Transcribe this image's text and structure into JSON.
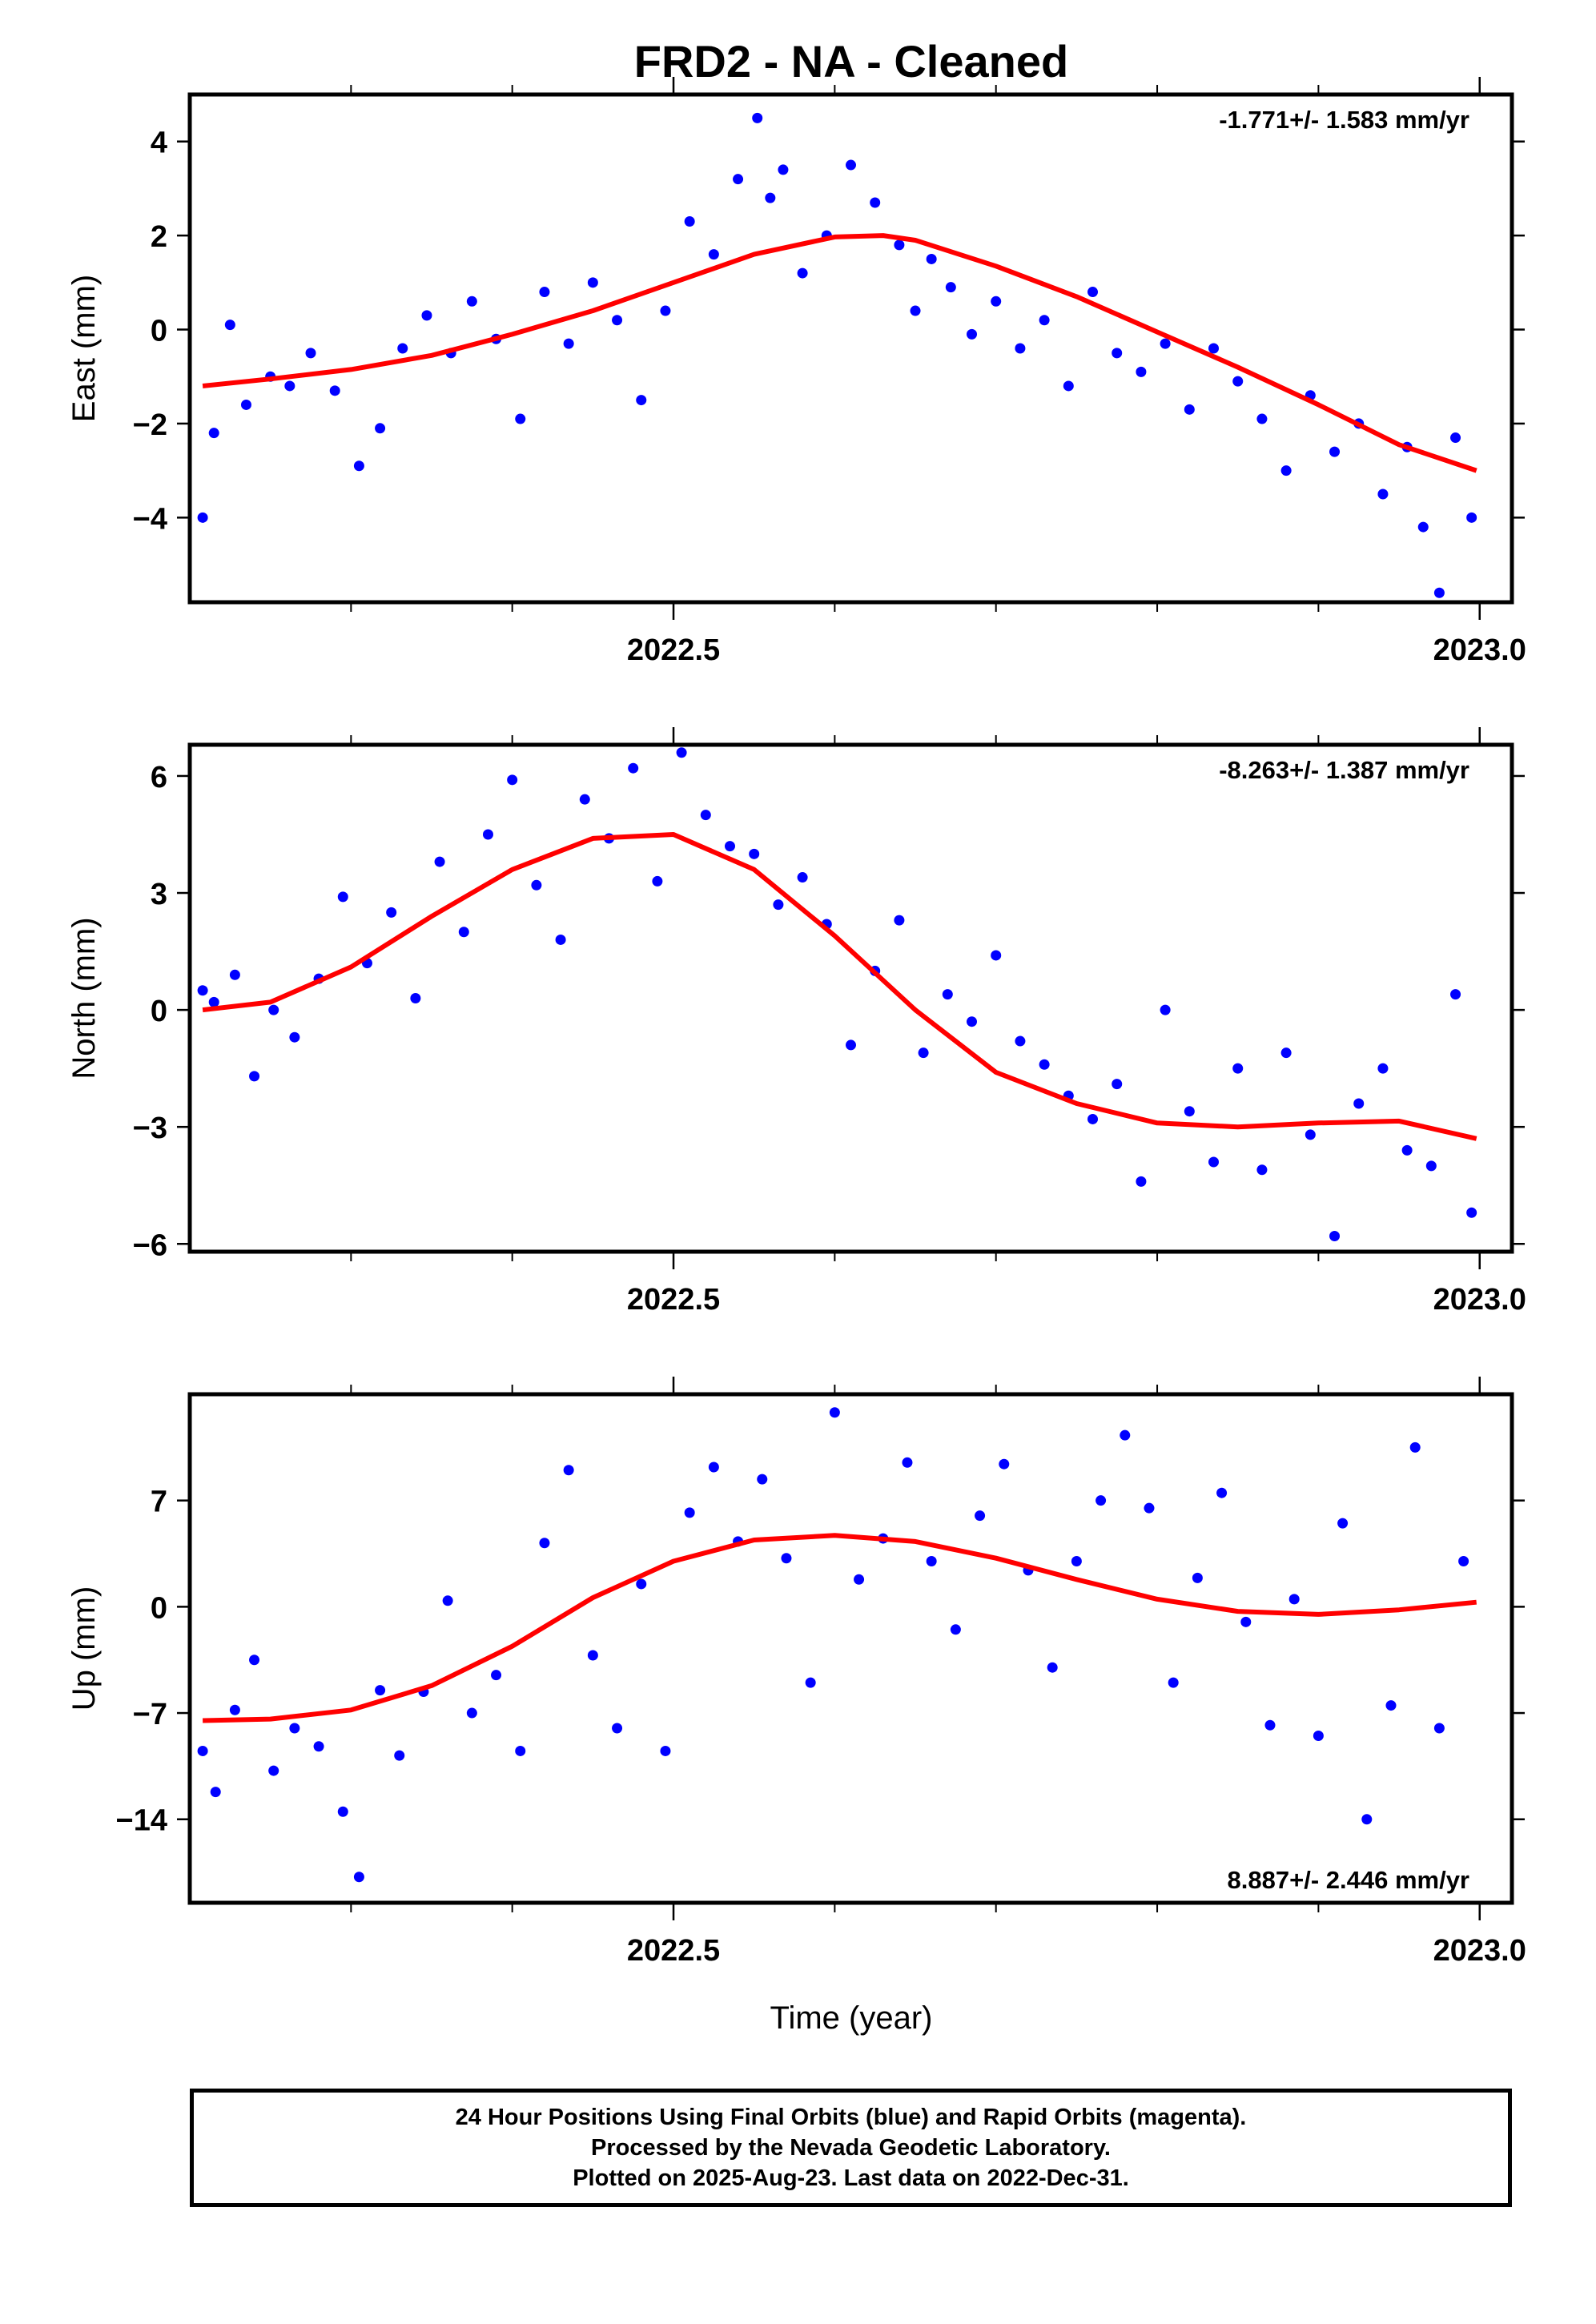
{
  "figure": {
    "title": "FRD2  - NA - Cleaned",
    "xlabel": "Time (year)",
    "colors": {
      "points": "#0000ff",
      "fit": "#ff0000",
      "axis": "#000000"
    }
  },
  "footer": {
    "lines": [
      "24 Hour Positions Using Final Orbits (blue) and Rapid Orbits (magenta).",
      "Processed by the Nevada Geodetic Laboratory.",
      "Plotted on 2025-Aug-23. Last data on 2022-Dec-31."
    ]
  },
  "chart_data": [
    {
      "type": "scatter",
      "panel": "east",
      "ylabel": "East (mm)",
      "rate_label": "-1.771+/- 1.583 mm/yr",
      "rate_position": "top-right",
      "xlim": [
        2022.2,
        2023.02
      ],
      "ylim": [
        -5.8,
        5.0
      ],
      "xticks": [
        2022.5,
        2023.0
      ],
      "xtick_labels": [
        "2022.5",
        "2023.0"
      ],
      "yticks": [
        -4,
        -2,
        0,
        2,
        4
      ],
      "ytick_labels": [
        "−4",
        "−2",
        "0",
        "2",
        "4"
      ],
      "series": [
        {
          "kind": "points",
          "x": [
            2022.208,
            2022.215,
            2022.225,
            2022.235,
            2022.25,
            2022.262,
            2022.275,
            2022.29,
            2022.305,
            2022.318,
            2022.332,
            2022.347,
            2022.362,
            2022.375,
            2022.39,
            2022.405,
            2022.42,
            2022.435,
            2022.45,
            2022.465,
            2022.48,
            2022.495,
            2022.51,
            2022.525,
            2022.54,
            2022.552,
            2022.56,
            2022.568,
            2022.58,
            2022.595,
            2022.61,
            2022.625,
            2022.64,
            2022.65,
            2022.66,
            2022.672,
            2022.685,
            2022.7,
            2022.715,
            2022.73,
            2022.745,
            2022.76,
            2022.775,
            2022.79,
            2022.805,
            2022.82,
            2022.835,
            2022.85,
            2022.865,
            2022.88,
            2022.895,
            2022.91,
            2022.925,
            2022.94,
            2022.955,
            2022.965,
            2022.975,
            2022.985,
            2022.995
          ],
          "y": [
            -4.0,
            -2.2,
            0.1,
            -1.6,
            -1.0,
            -1.2,
            -0.5,
            -1.3,
            -2.9,
            -2.1,
            -0.4,
            0.3,
            -0.5,
            0.6,
            -0.2,
            -1.9,
            0.8,
            -0.3,
            1.0,
            0.2,
            -1.5,
            0.4,
            2.3,
            1.6,
            3.2,
            4.5,
            2.8,
            3.4,
            1.2,
            2.0,
            3.5,
            2.7,
            1.8,
            0.4,
            1.5,
            0.9,
            -0.1,
            0.6,
            -0.4,
            0.2,
            -1.2,
            0.8,
            -0.5,
            -0.9,
            -0.3,
            -1.7,
            -0.4,
            -1.1,
            -1.9,
            -3.0,
            -1.4,
            -2.6,
            -2.0,
            -3.5,
            -2.5,
            -4.2,
            -5.6,
            -2.3,
            -4.0
          ]
        },
        {
          "kind": "fit",
          "x": [
            2022.208,
            2022.25,
            2022.3,
            2022.35,
            2022.4,
            2022.45,
            2022.5,
            2022.55,
            2022.6,
            2022.63,
            2022.65,
            2022.7,
            2022.75,
            2022.8,
            2022.85,
            2022.9,
            2022.95,
            2022.998
          ],
          "y": [
            -1.2,
            -1.05,
            -0.85,
            -0.55,
            -0.1,
            0.4,
            1.0,
            1.6,
            1.97,
            2.0,
            1.9,
            1.35,
            0.7,
            -0.05,
            -0.8,
            -1.6,
            -2.45,
            -3.0
          ]
        }
      ]
    },
    {
      "type": "scatter",
      "panel": "north",
      "ylabel": "North (mm)",
      "rate_label": "-8.263+/- 1.387 mm/yr",
      "rate_position": "top-right",
      "xlim": [
        2022.2,
        2023.02
      ],
      "ylim": [
        -6.2,
        6.8
      ],
      "xticks": [
        2022.5,
        2023.0
      ],
      "xtick_labels": [
        "2022.5",
        "2023.0"
      ],
      "yticks": [
        -6,
        -3,
        0,
        3,
        6
      ],
      "ytick_labels": [
        "−6",
        "−3",
        "0",
        "3",
        "6"
      ],
      "series": [
        {
          "kind": "points",
          "x": [
            2022.208,
            2022.215,
            2022.228,
            2022.24,
            2022.252,
            2022.265,
            2022.28,
            2022.295,
            2022.31,
            2022.325,
            2022.34,
            2022.355,
            2022.37,
            2022.385,
            2022.4,
            2022.415,
            2022.43,
            2022.445,
            2022.46,
            2022.475,
            2022.49,
            2022.505,
            2022.52,
            2022.535,
            2022.55,
            2022.565,
            2022.58,
            2022.595,
            2022.61,
            2022.625,
            2022.64,
            2022.655,
            2022.67,
            2022.685,
            2022.7,
            2022.715,
            2022.73,
            2022.745,
            2022.76,
            2022.775,
            2022.79,
            2022.805,
            2022.82,
            2022.835,
            2022.85,
            2022.865,
            2022.88,
            2022.895,
            2022.91,
            2022.925,
            2022.94,
            2022.955,
            2022.97,
            2022.985,
            2022.995
          ],
          "y": [
            0.5,
            0.2,
            0.9,
            -1.7,
            0.0,
            -0.7,
            0.8,
            2.9,
            1.2,
            2.5,
            0.3,
            3.8,
            2.0,
            4.5,
            5.9,
            3.2,
            1.8,
            5.4,
            4.4,
            6.2,
            3.3,
            6.6,
            5.0,
            4.2,
            4.0,
            2.7,
            3.4,
            2.2,
            -0.9,
            1.0,
            2.3,
            -1.1,
            0.4,
            -0.3,
            1.4,
            -0.8,
            -1.4,
            -2.2,
            -2.8,
            -1.9,
            -4.4,
            0.0,
            -2.6,
            -3.9,
            -1.5,
            -4.1,
            -1.1,
            -3.2,
            -5.8,
            -2.4,
            -1.5,
            -3.6,
            -4.0,
            0.4,
            -5.2
          ]
        },
        {
          "kind": "fit",
          "x": [
            2022.208,
            2022.25,
            2022.3,
            2022.35,
            2022.4,
            2022.45,
            2022.5,
            2022.55,
            2022.6,
            2022.65,
            2022.7,
            2022.75,
            2022.8,
            2022.85,
            2022.9,
            2022.95,
            2022.998
          ],
          "y": [
            0.0,
            0.2,
            1.1,
            2.4,
            3.6,
            4.4,
            4.5,
            3.6,
            1.9,
            0.0,
            -1.6,
            -2.4,
            -2.9,
            -3.0,
            -2.9,
            -2.85,
            -3.3
          ]
        }
      ]
    },
    {
      "type": "scatter",
      "panel": "up",
      "ylabel": "Up (mm)",
      "rate_label": "8.887+/- 2.446 mm/yr",
      "rate_position": "bottom-right",
      "xlabel": "Time (year)",
      "xlim": [
        2022.2,
        2023.02
      ],
      "ylim": [
        -19.5,
        14.0
      ],
      "xticks": [
        2022.5,
        2023.0
      ],
      "xtick_labels": [
        "2022.5",
        "2023.0"
      ],
      "yticks": [
        -14,
        -7,
        0,
        7
      ],
      "ytick_labels": [
        "−14",
        "−7",
        "0",
        "7"
      ],
      "series": [
        {
          "kind": "points",
          "x": [
            2022.208,
            2022.216,
            2022.228,
            2022.24,
            2022.252,
            2022.265,
            2022.28,
            2022.295,
            2022.305,
            2022.318,
            2022.33,
            2022.345,
            2022.36,
            2022.375,
            2022.39,
            2022.405,
            2022.42,
            2022.435,
            2022.45,
            2022.465,
            2022.48,
            2022.495,
            2022.51,
            2022.525,
            2022.54,
            2022.555,
            2022.57,
            2022.585,
            2022.6,
            2022.615,
            2022.63,
            2022.645,
            2022.66,
            2022.675,
            2022.69,
            2022.705,
            2022.72,
            2022.735,
            2022.75,
            2022.765,
            2022.78,
            2022.795,
            2022.81,
            2022.825,
            2022.84,
            2022.855,
            2022.87,
            2022.885,
            2022.9,
            2022.915,
            2022.93,
            2022.945,
            2022.96,
            2022.975,
            2022.99
          ],
          "y": [
            -9.5,
            -12.2,
            -6.8,
            -3.5,
            -10.8,
            -8.0,
            -9.2,
            -13.5,
            -17.8,
            -5.5,
            -9.8,
            -5.6,
            0.4,
            -7.0,
            -4.5,
            -9.5,
            4.2,
            9.0,
            -3.2,
            -8.0,
            1.5,
            -9.5,
            6.2,
            9.2,
            4.3,
            8.4,
            3.2,
            -5.0,
            12.8,
            1.8,
            4.5,
            9.5,
            3.0,
            -1.5,
            6.0,
            9.4,
            2.4,
            -4.0,
            3.0,
            7.0,
            11.3,
            6.5,
            -5.0,
            1.9,
            7.5,
            -1.0,
            -7.8,
            0.5,
            -8.5,
            5.5,
            -14.0,
            -6.5,
            10.5,
            -8.0,
            3.0
          ]
        },
        {
          "kind": "fit",
          "x": [
            2022.208,
            2022.25,
            2022.3,
            2022.35,
            2022.4,
            2022.45,
            2022.5,
            2022.55,
            2022.6,
            2022.65,
            2022.7,
            2022.75,
            2022.8,
            2022.85,
            2022.9,
            2022.95,
            2022.998
          ],
          "y": [
            -7.5,
            -7.4,
            -6.8,
            -5.2,
            -2.6,
            0.6,
            3.0,
            4.4,
            4.7,
            4.3,
            3.2,
            1.8,
            0.5,
            -0.3,
            -0.5,
            -0.2,
            0.3
          ]
        }
      ]
    }
  ]
}
